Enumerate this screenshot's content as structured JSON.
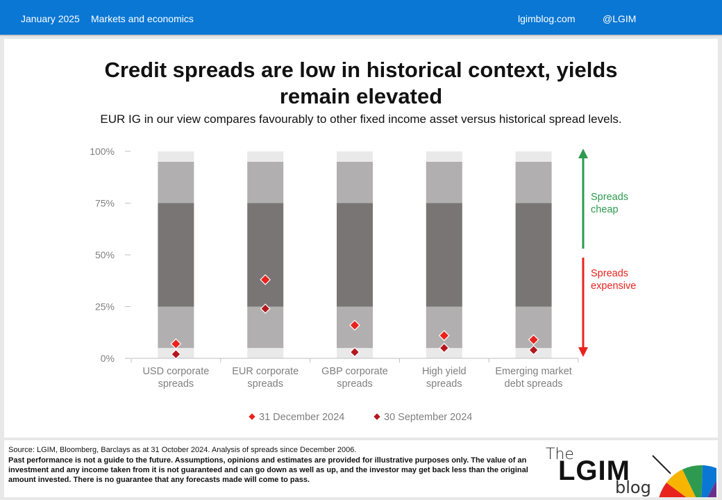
{
  "header": {
    "date": "January 2025",
    "section": "Markets and economics",
    "site": "lgimblog.com",
    "handle": "@LGIM"
  },
  "title_line1": "Credit spreads are low in historical context, yields",
  "title_line2": "remain elevated",
  "subtitle": "EUR IG in our view compares favourably to other fixed income asset versus historical spread levels.",
  "chart_data": {
    "type": "bar",
    "subtype": "percentile-range-with-markers",
    "categories": [
      [
        "USD corporate",
        "spreads"
      ],
      [
        "EUR corporate",
        "spreads"
      ],
      [
        "GBP corporate",
        "spreads"
      ],
      [
        "High yield",
        "spreads"
      ],
      [
        "Emerging market",
        "debt spreads"
      ]
    ],
    "y_ticks": [
      "100%",
      "75%",
      "50%",
      "25%",
      "0%"
    ],
    "ylim": [
      0,
      100
    ],
    "bands": [
      {
        "from": 0,
        "to": 5,
        "color": "#e9e9e9"
      },
      {
        "from": 5,
        "to": 25,
        "color": "#b1afaf"
      },
      {
        "from": 25,
        "to": 75,
        "color": "#787574"
      },
      {
        "from": 75,
        "to": 95,
        "color": "#b1afaf"
      },
      {
        "from": 95,
        "to": 100,
        "color": "#e9e9e9"
      }
    ],
    "series": [
      {
        "name": "31 December 2024",
        "color": "#e8231e",
        "values": [
          7,
          38,
          16,
          11,
          9
        ]
      },
      {
        "name": "30 September 2024",
        "color": "#b3181e",
        "values": [
          2,
          24,
          3,
          5,
          4
        ]
      }
    ],
    "annotations": [
      {
        "lines": [
          "Spreads",
          "cheap"
        ],
        "color": "#2e9a4f",
        "direction": "up"
      },
      {
        "lines": [
          "Spreads",
          "expensive"
        ],
        "color": "#e8231e",
        "direction": "down"
      }
    ],
    "grid": false,
    "legend": "bottom-center",
    "colors": {
      "axis": "#bfbfbf",
      "tick_text": "#7f7f7f",
      "category_text": "#7f7f7f",
      "legend_text": "#7f7f7f"
    }
  },
  "footer": {
    "source": "Source: LGIM, Bloomberg, Barclays as at 31 October 2024. Analysis of spreads since December 2006.",
    "disclaimer": "Past performance is not a guide to the future. Assumptions, opinions and estimates are provided for illustrative purposes only. The value of an investment and any income taken from it is not guaranteed and can go down as well as up, and the investor may get back less than the original amount invested. There is no guarantee that any forecasts made will come to pass."
  },
  "logo": {
    "the": "The",
    "name": "LGIM",
    "suffix": "blog"
  }
}
